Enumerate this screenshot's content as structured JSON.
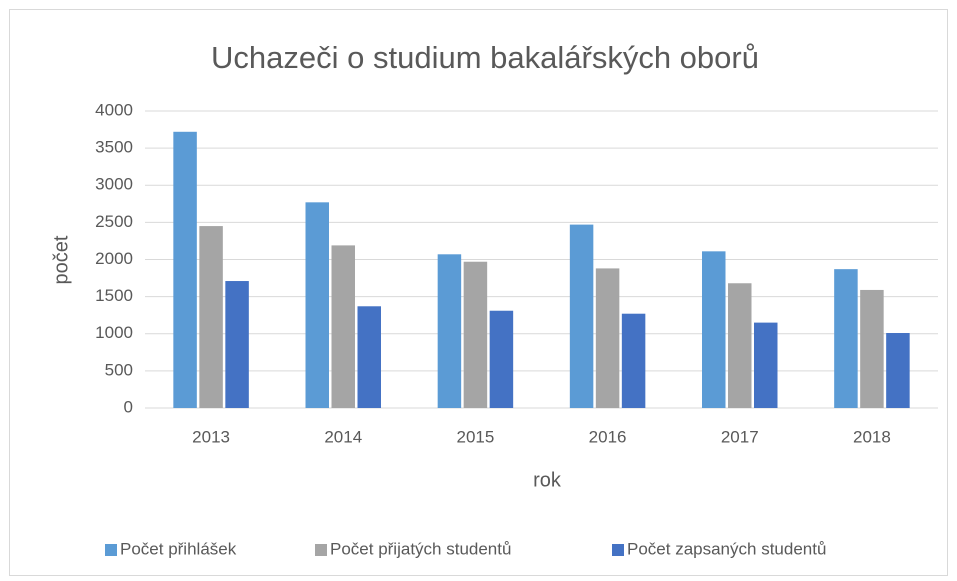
{
  "chart_data": {
    "type": "bar",
    "title": "Uchazeči o studium bakalářských oborů",
    "x_label": "rok",
    "y_label": "počet",
    "categories": [
      "2013",
      "2014",
      "2015",
      "2016",
      "2017",
      "2018"
    ],
    "series": [
      {
        "name": "Počet přihlášek",
        "color": "#5b9bd5",
        "values": [
          3720,
          2770,
          2070,
          2470,
          2110,
          1870
        ]
      },
      {
        "name": "Počet přijatých studentů",
        "color": "#a5a5a5",
        "values": [
          2450,
          2190,
          1970,
          1880,
          1680,
          1590
        ]
      },
      {
        "name": "Počet zapsaných studentů",
        "color": "#4472c4",
        "values": [
          1710,
          1370,
          1310,
          1270,
          1150,
          1010
        ]
      }
    ],
    "ylim": [
      0,
      4000
    ],
    "yticks": [
      0,
      500,
      1000,
      1500,
      2000,
      2500,
      3000,
      3500,
      4000
    ],
    "grid": true,
    "legend": "bottom"
  }
}
